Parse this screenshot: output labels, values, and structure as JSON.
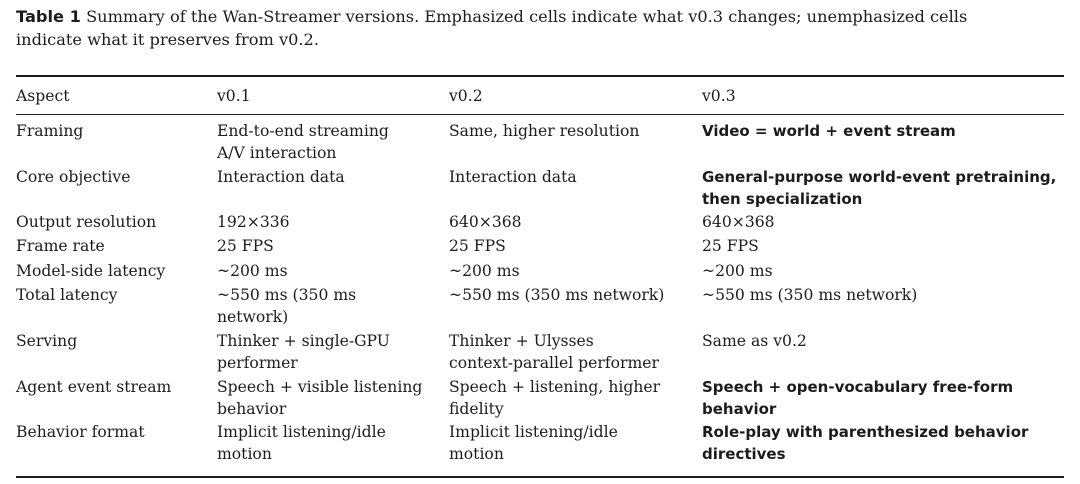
{
  "caption": {
    "label": "Table 1",
    "line1": "Summary of the Wan-Streamer versions. Emphasized cells indicate what v0.3 changes; unemphasized cells",
    "line2": "indicate what it preserves from v0.2."
  },
  "table": {
    "headers": [
      "Aspect",
      "v0.1",
      "v0.2",
      "v0.3"
    ],
    "rows": [
      {
        "aspect": [
          "Framing"
        ],
        "v01": [
          "End-to-end streaming",
          "A/V interaction"
        ],
        "v02": [
          "Same, higher resolution"
        ],
        "v03": [
          "Video = world + event stream"
        ],
        "v03_emphasized": true
      },
      {
        "aspect": [
          "Core objective"
        ],
        "v01": [
          "Interaction data"
        ],
        "v02": [
          "Interaction data"
        ],
        "v03": [
          "General-purpose world-event pretraining,",
          "then specialization"
        ],
        "v03_emphasized": true
      },
      {
        "aspect": [
          "Output resolution"
        ],
        "v01": [
          "192×336"
        ],
        "v02": [
          "640×368"
        ],
        "v03": [
          "640×368"
        ],
        "v03_emphasized": false
      },
      {
        "aspect": [
          "Frame rate"
        ],
        "v01": [
          "25 FPS"
        ],
        "v02": [
          "25 FPS"
        ],
        "v03": [
          "25 FPS"
        ],
        "v03_emphasized": false
      },
      {
        "aspect": [
          "Model-side latency"
        ],
        "v01": [
          "~200 ms"
        ],
        "v02": [
          "~200 ms"
        ],
        "v03": [
          "~200 ms"
        ],
        "v03_emphasized": false
      },
      {
        "aspect": [
          "Total latency"
        ],
        "v01": [
          "~550 ms (350 ms",
          "network)"
        ],
        "v02": [
          "~550 ms (350 ms network)"
        ],
        "v03": [
          "~550 ms (350 ms network)"
        ],
        "v03_emphasized": false
      },
      {
        "aspect": [
          "Serving"
        ],
        "v01": [
          "Thinker + single-GPU",
          "performer"
        ],
        "v02": [
          "Thinker + Ulysses",
          "context-parallel performer"
        ],
        "v03": [
          "Same as v0.2"
        ],
        "v03_emphasized": false
      },
      {
        "aspect": [
          "Agent event stream"
        ],
        "v01": [
          "Speech + visible listening",
          "behavior"
        ],
        "v02": [
          "Speech + listening, higher",
          "fidelity"
        ],
        "v03": [
          "Speech + open-vocabulary free-form",
          "behavior"
        ],
        "v03_emphasized": true
      },
      {
        "aspect": [
          "Behavior format"
        ],
        "v01": [
          "Implicit listening/idle",
          "motion"
        ],
        "v02": [
          "Implicit listening/idle",
          "motion"
        ],
        "v03": [
          "Role-play with parenthesized behavior",
          "directives"
        ],
        "v03_emphasized": true
      }
    ]
  }
}
